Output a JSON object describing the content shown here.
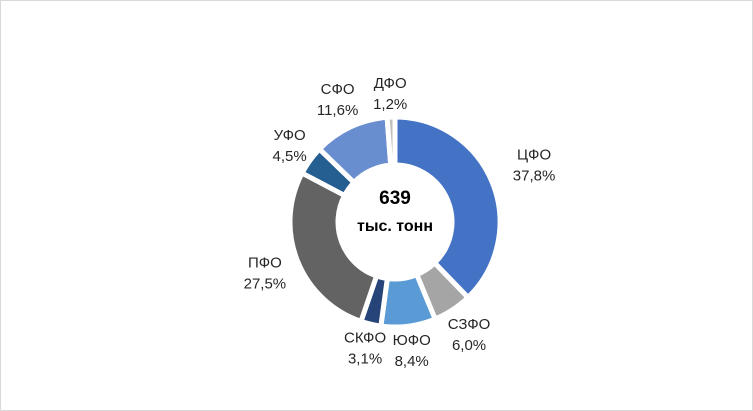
{
  "chart_data": {
    "type": "donut",
    "categories": [
      "ЦФО",
      "СЗФО",
      "ЮФО",
      "СКФО",
      "ПФО",
      "УФО",
      "СФО",
      "ДФО"
    ],
    "values": [
      37.8,
      6.0,
      8.4,
      3.1,
      27.5,
      4.5,
      11.6,
      1.2
    ],
    "value_labels": [
      "37,8%",
      "6,0%",
      "8,4%",
      "3,1%",
      "27,5%",
      "4,5%",
      "11,6%",
      "1,2%"
    ],
    "colors": [
      "#4472c4",
      "#a5a5a5",
      "#5b9bd5",
      "#264478",
      "#636363",
      "#255e91",
      "#698ed0",
      "#bfbfbf"
    ],
    "center_value": "639",
    "center_label": "тыс. тонн"
  }
}
